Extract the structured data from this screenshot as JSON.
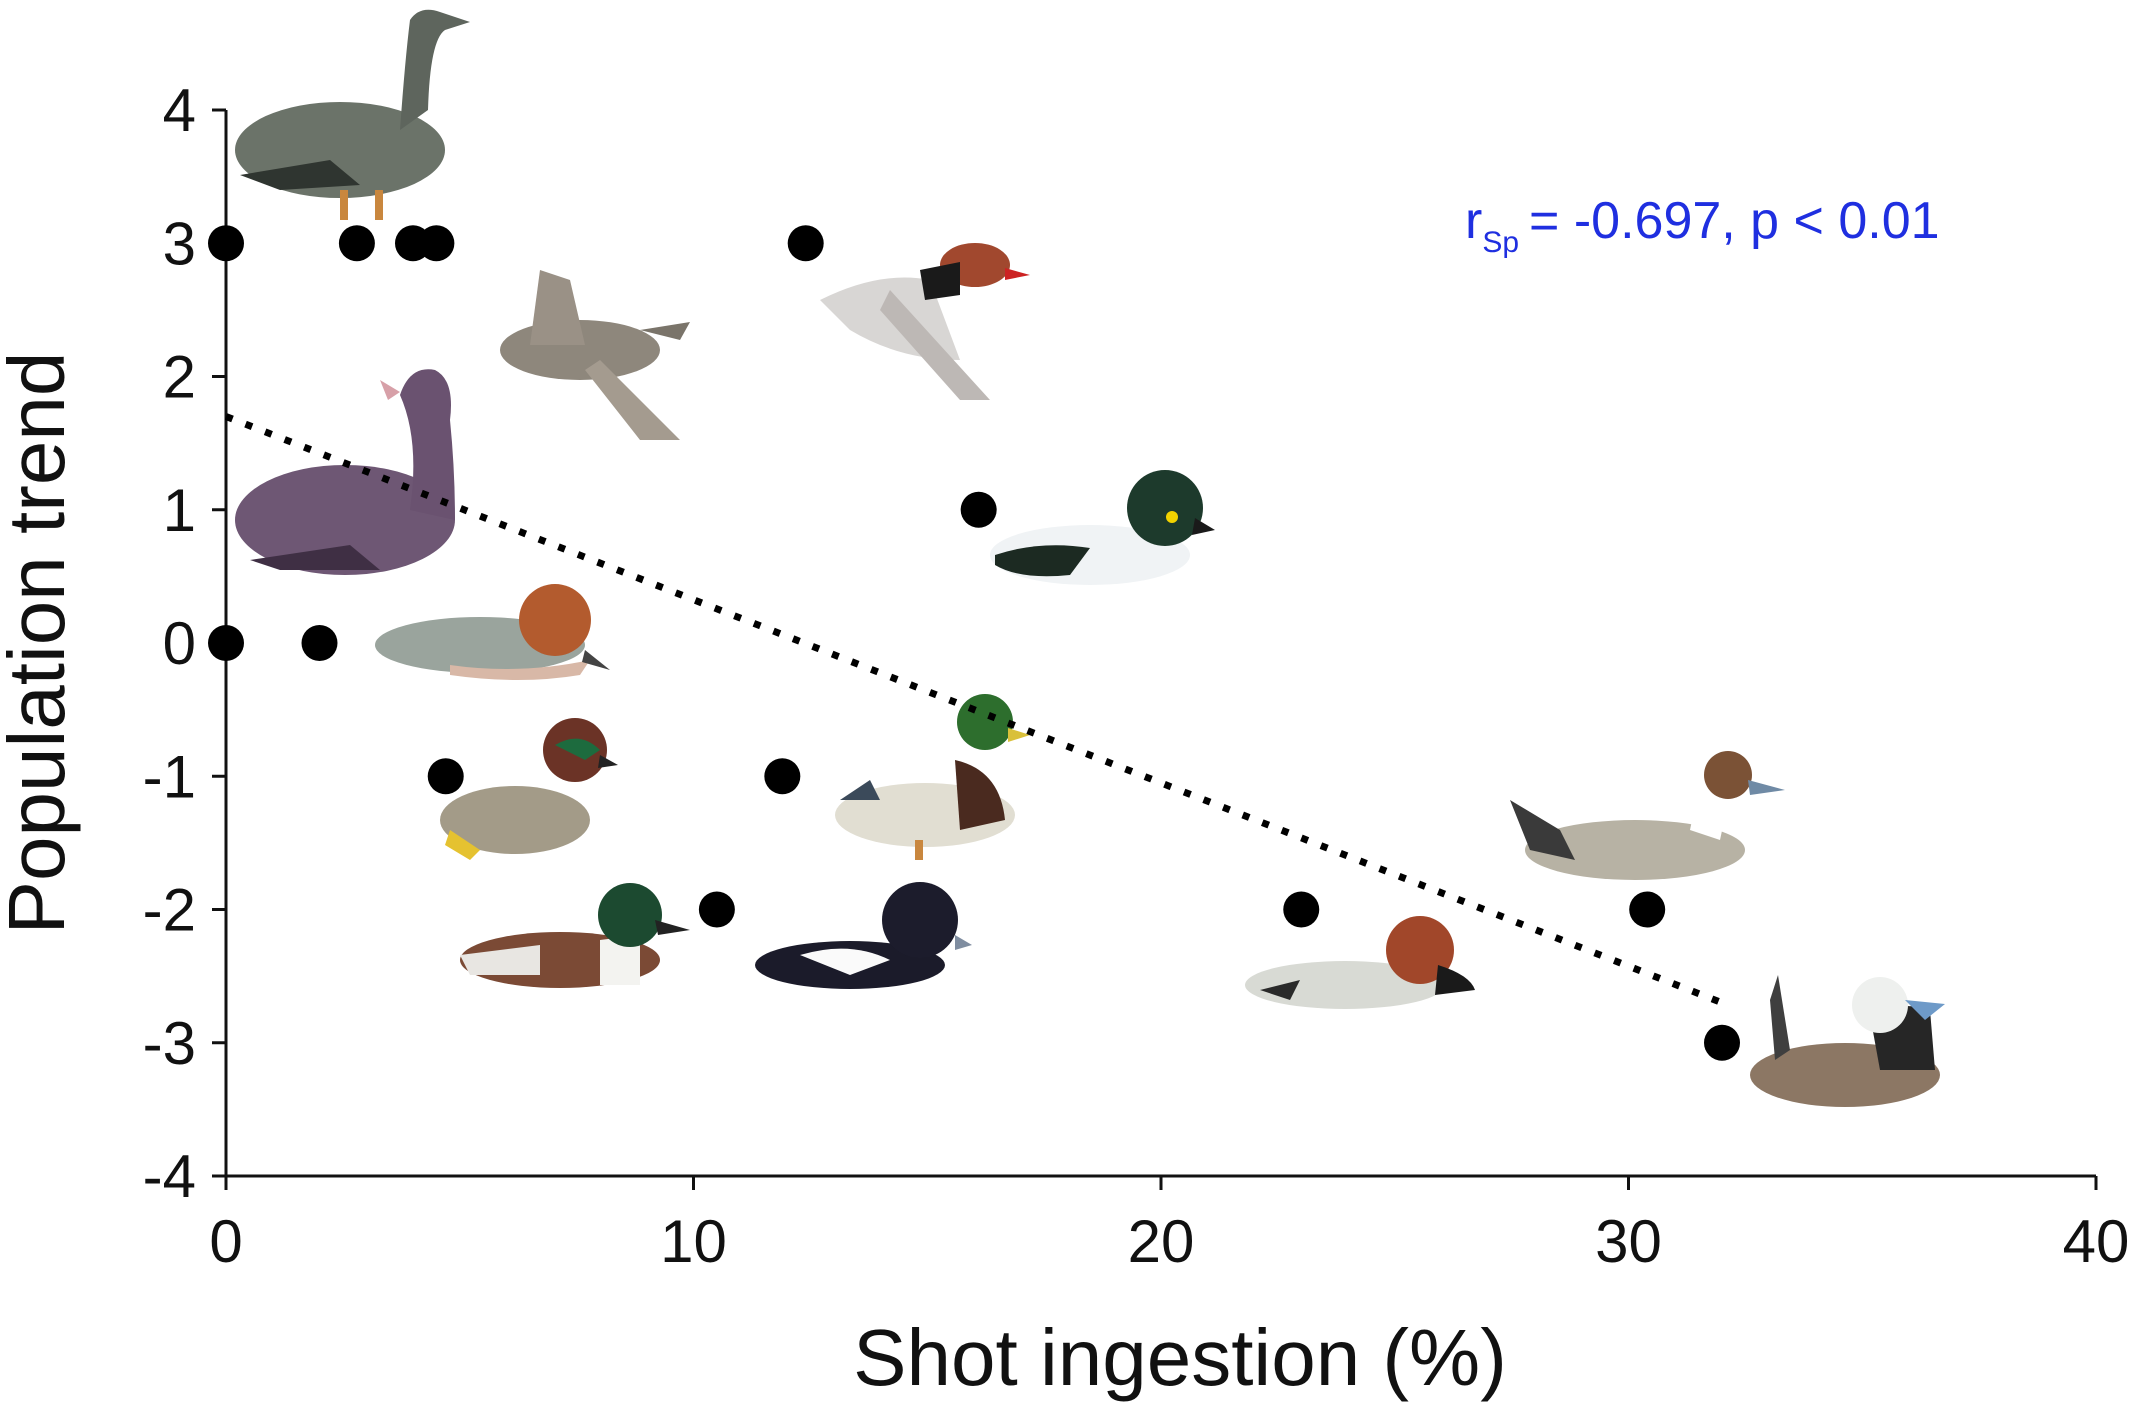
{
  "chart_data": {
    "type": "scatter",
    "title": "",
    "xlabel": "Shot ingestion (%)",
    "ylabel": "Population trend",
    "xlim": [
      0,
      40
    ],
    "ylim": [
      -4,
      4
    ],
    "xticks": [
      0,
      10,
      20,
      30,
      40
    ],
    "yticks": [
      4,
      3,
      2,
      1,
      0,
      -1,
      -2,
      -3,
      -4
    ],
    "grid": false,
    "legend": "none",
    "points": [
      {
        "x": 0,
        "y": 3
      },
      {
        "x": 2.8,
        "y": 3
      },
      {
        "x": 4.0,
        "y": 3
      },
      {
        "x": 4.5,
        "y": 3
      },
      {
        "x": 12.4,
        "y": 3
      },
      {
        "x": 16.1,
        "y": 1
      },
      {
        "x": 0,
        "y": 0
      },
      {
        "x": 2.0,
        "y": 0
      },
      {
        "x": 4.7,
        "y": -1
      },
      {
        "x": 11.9,
        "y": -1
      },
      {
        "x": 10.5,
        "y": -2
      },
      {
        "x": 23.0,
        "y": -2
      },
      {
        "x": 30.4,
        "y": -2
      },
      {
        "x": 32.0,
        "y": -3
      }
    ],
    "trendline": {
      "style": "dotted",
      "x": [
        0,
        32
      ],
      "y": [
        1.7,
        -2.7
      ]
    },
    "annotation": {
      "r_symbol": "r",
      "r_subscript": "Sp",
      "text": "=  -0.697, p < 0.01",
      "color": "#1f2fe0"
    },
    "point_color": "#000000",
    "illustrations": [
      "goose-icon",
      "duck-flying-icon",
      "duck-flying-icon",
      "goose-icon",
      "goldeneye-icon",
      "wigeon-icon",
      "teal-icon",
      "mallard-icon",
      "shoveler-icon",
      "tufted-duck-icon",
      "pochard-icon",
      "pintail-icon",
      "white-headed-duck-icon"
    ]
  }
}
